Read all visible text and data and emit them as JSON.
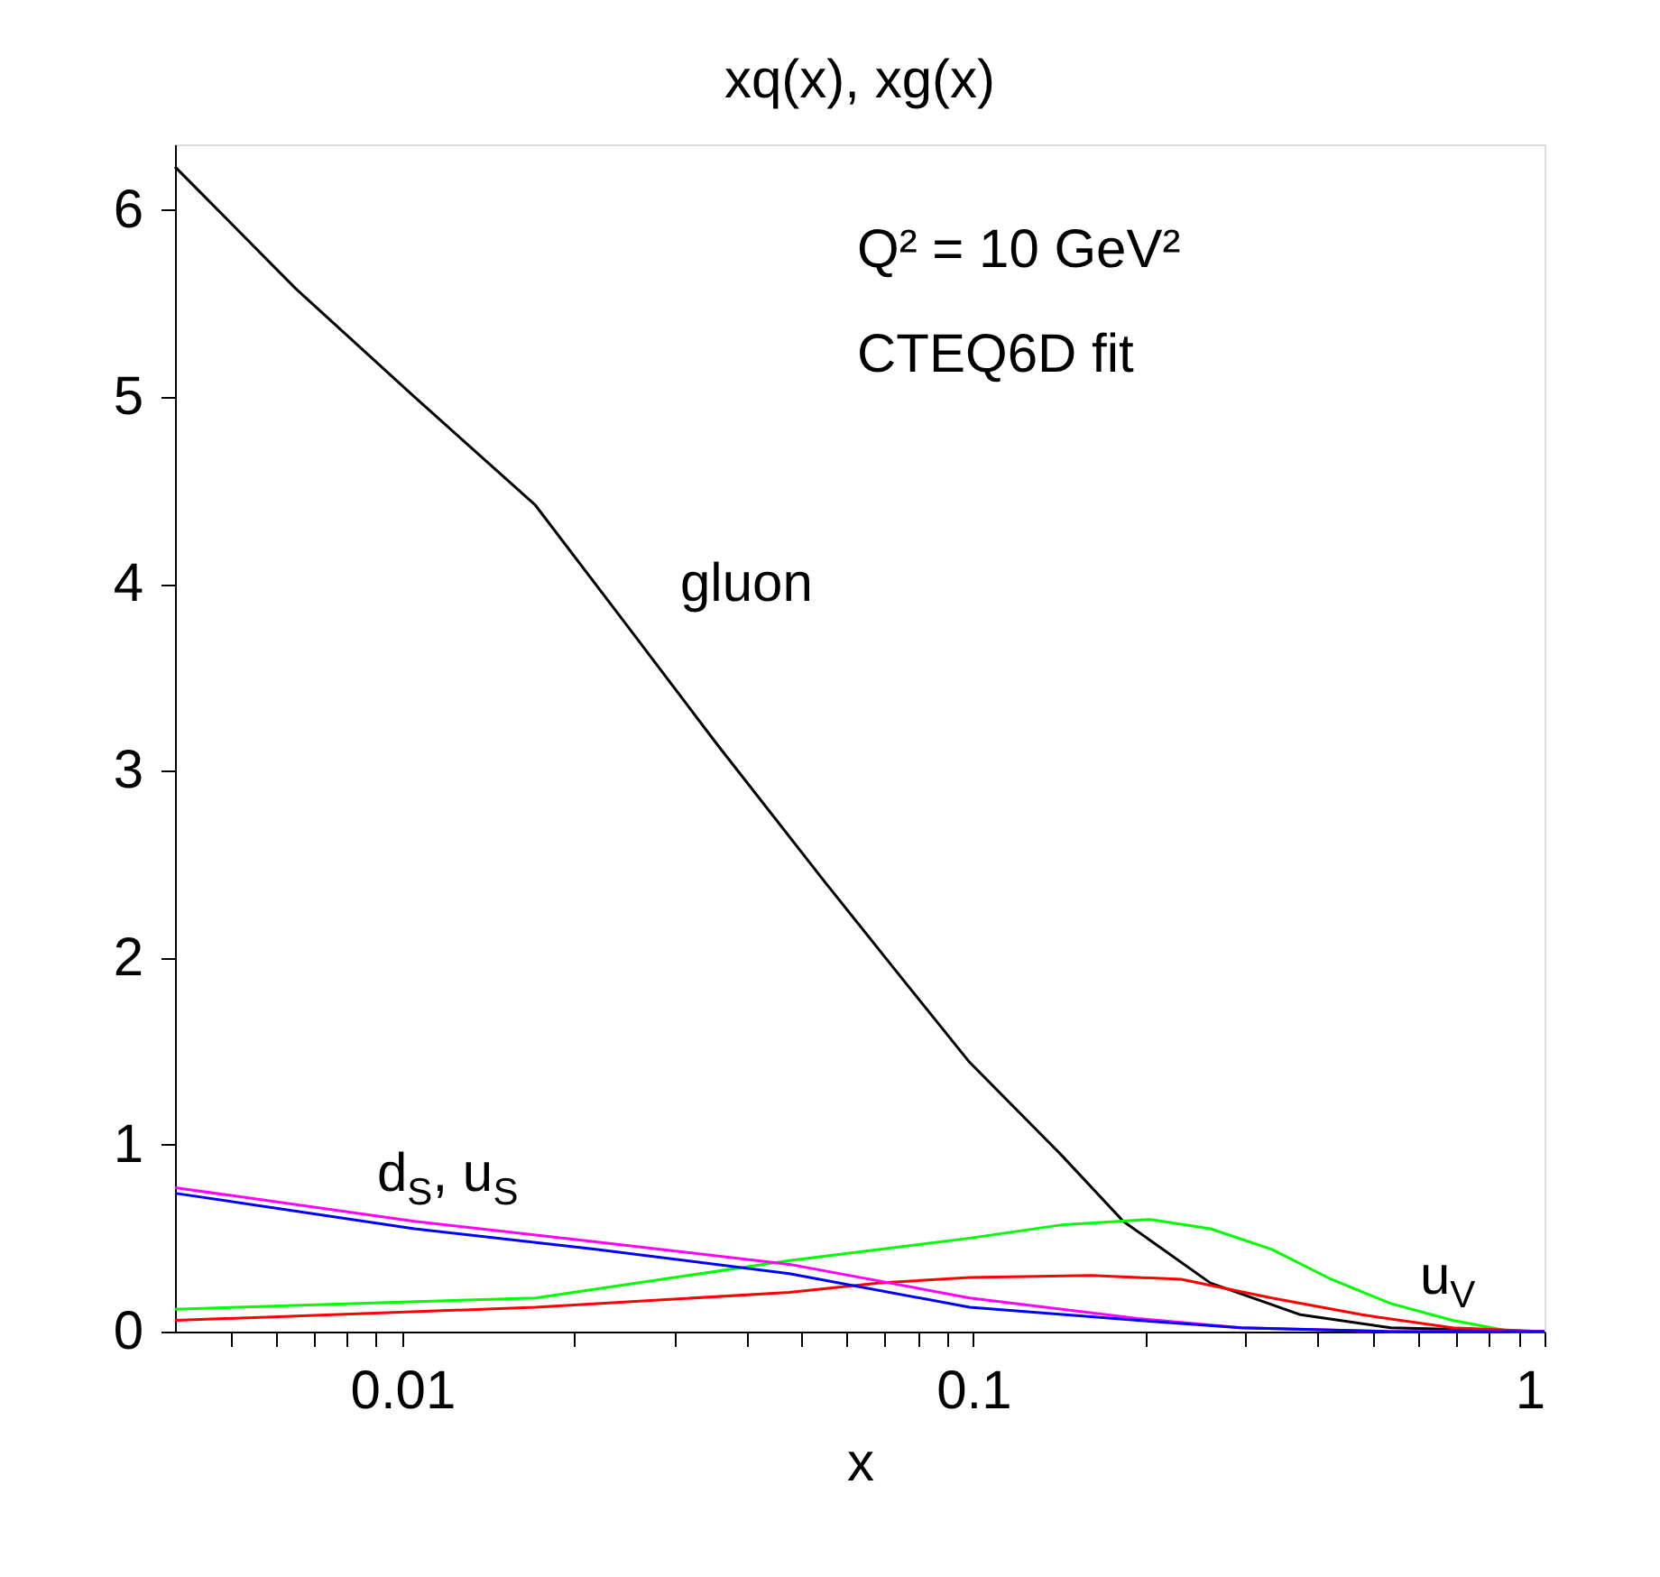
{
  "chart_data": {
    "type": "line",
    "title": "xq(x), xg(x)",
    "xlabel": "x",
    "log": "x",
    "grid": false,
    "legend": false,
    "marker": "none",
    "line_style": "solid",
    "xlim": [
      0.004,
      1
    ],
    "ylim": [
      0,
      6.35
    ],
    "xticks": [
      {
        "value": 0.005,
        "label": null
      },
      {
        "value": 0.006,
        "label": null
      },
      {
        "value": 0.007,
        "label": null
      },
      {
        "value": 0.008,
        "label": null
      },
      {
        "value": 0.009,
        "label": null
      },
      0.01,
      {
        "value": 0.02,
        "label": null
      },
      {
        "value": 0.03,
        "label": null
      },
      {
        "value": 0.04,
        "label": null
      },
      {
        "value": 0.05,
        "label": null
      },
      {
        "value": 0.06,
        "label": null
      },
      {
        "value": 0.07,
        "label": null
      },
      {
        "value": 0.08,
        "label": null
      },
      {
        "value": 0.09,
        "label": null
      },
      0.1,
      {
        "value": 0.2,
        "label": null
      },
      {
        "value": 0.3,
        "label": null
      },
      {
        "value": 0.4,
        "label": null
      },
      {
        "value": 0.5,
        "label": null
      },
      {
        "value": 0.6,
        "label": null
      },
      {
        "value": 0.7,
        "label": null
      },
      {
        "value": 0.8,
        "label": null
      },
      {
        "value": 0.9,
        "label": null
      },
      1
    ],
    "yticks": [
      0,
      1,
      2,
      3,
      4,
      5,
      6
    ],
    "series": [
      {
        "color": "#000000",
        "x": [
          0.004,
          0.0065,
          0.0105,
          0.0171,
          0.0247,
          0.0356,
          0.0551,
          0.0736,
          0.0985,
          0.142,
          0.183,
          0.26,
          0.374,
          0.538,
          1
        ],
        "values": [
          6.23,
          5.58,
          5.0,
          4.42,
          3.78,
          3.14,
          2.4,
          1.92,
          1.44,
          0.95,
          0.59,
          0.26,
          0.09,
          0.02,
          0
        ]
      },
      {
        "color": "#00ff00",
        "x": [
          0.004,
          0.0171,
          0.0476,
          0.0985,
          0.142,
          0.204,
          0.26,
          0.333,
          0.423,
          0.538,
          0.69,
          0.877,
          1
        ],
        "values": [
          0.12,
          0.18,
          0.38,
          0.5,
          0.57,
          0.6,
          0.55,
          0.44,
          0.28,
          0.15,
          0.06,
          0,
          0
        ]
      },
      {
        "color": "#ff0000",
        "x": [
          0.004,
          0.0171,
          0.0476,
          0.0686,
          0.0985,
          0.161,
          0.231,
          0.333,
          0.479,
          0.69,
          1
        ],
        "values": [
          0.06,
          0.13,
          0.21,
          0.26,
          0.29,
          0.3,
          0.28,
          0.18,
          0.09,
          0.02,
          0
        ]
      },
      {
        "color": "#ff00ff",
        "x": [
          0.004,
          0.0105,
          0.0218,
          0.0476,
          0.0985,
          0.194,
          0.294,
          0.538,
          1
        ],
        "values": [
          0.77,
          0.59,
          0.48,
          0.36,
          0.18,
          0.07,
          0.02,
          0,
          0
        ]
      },
      {
        "color": "#0000ff",
        "x": [
          0.004,
          0.0105,
          0.0218,
          0.0476,
          0.0985,
          0.194,
          0.294,
          0.538,
          1
        ],
        "values": [
          0.74,
          0.55,
          0.44,
          0.31,
          0.13,
          0.06,
          0.02,
          0,
          0
        ]
      }
    ],
    "annotations": [
      "gluon",
      "d$_{S}$, u$_{S}$",
      "u$_{V}$",
      "Q² = 10 GeV²",
      "CTEQ6D fit"
    ]
  }
}
